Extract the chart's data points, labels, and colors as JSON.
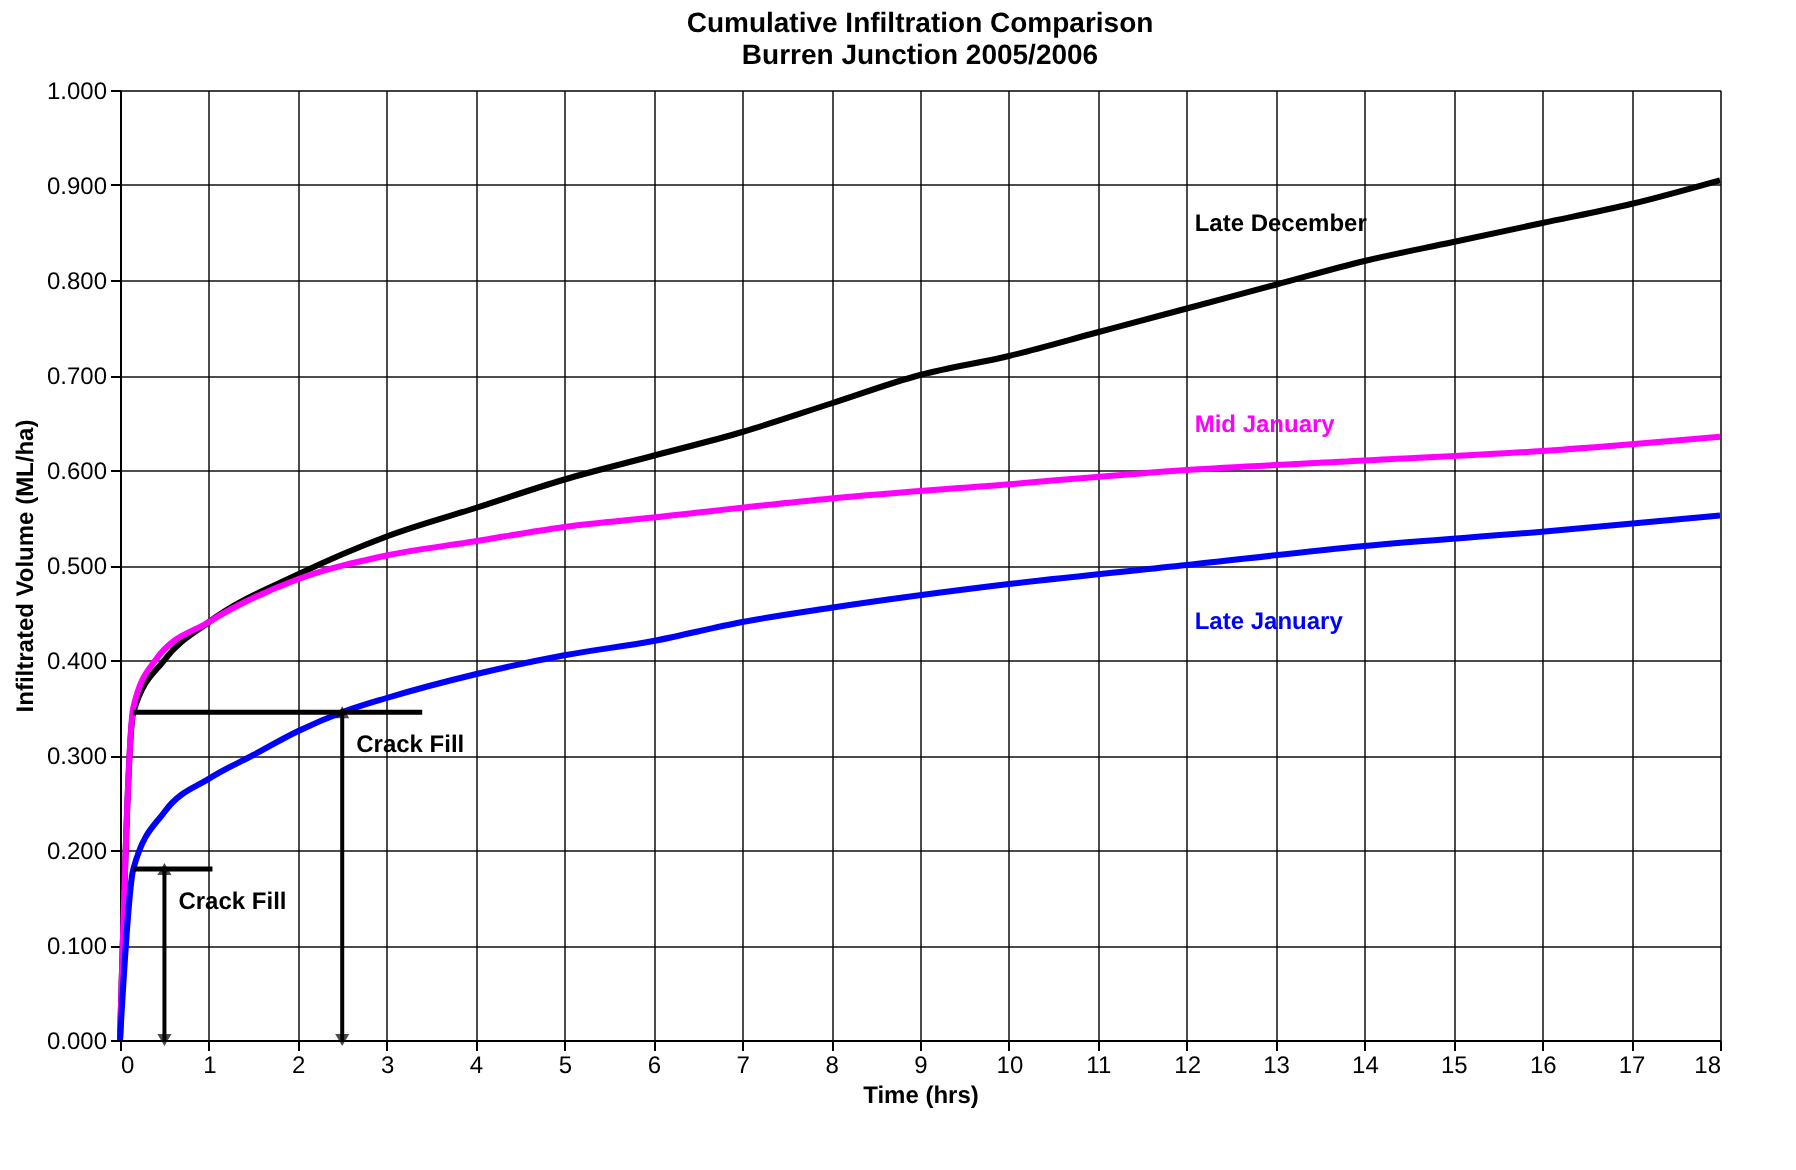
{
  "chart_data": {
    "type": "line",
    "title": [
      "Cumulative Infiltration Comparison",
      "Burren Junction 2005/2006"
    ],
    "xlabel": "Time (hrs)",
    "ylabel": "Infiltrated Volume (ML/ha)",
    "xlim": [
      0,
      18
    ],
    "xticks": [
      0,
      1,
      2,
      3,
      4,
      5,
      6,
      7,
      8,
      9,
      10,
      11,
      12,
      13,
      14,
      15,
      16,
      17,
      18
    ],
    "ylim": [
      0,
      1
    ],
    "yticks": [
      {
        "value": 0,
        "label": "0.000"
      },
      {
        "value": 0.1,
        "label": "0.100"
      },
      {
        "value": 0.2,
        "label": "0.200"
      },
      {
        "value": 0.3,
        "label": "0.300"
      },
      {
        "value": 0.4,
        "label": "0.400"
      },
      {
        "value": 0.5,
        "label": "0.500"
      },
      {
        "value": 0.6,
        "label": "0.600"
      },
      {
        "value": 0.7,
        "label": "0.700"
      },
      {
        "value": 0.8,
        "label": "0.800"
      },
      {
        "value": 0.9,
        "label": "0.900"
      },
      {
        "value": 1,
        "label": "1.000"
      }
    ],
    "grid": true,
    "legend": false,
    "marker": "none",
    "line_style": "solid",
    "series": [
      {
        "name": "Late December",
        "color": "#000000",
        "x": [
          0,
          0.15,
          0.5,
          1,
          2,
          3,
          4,
          5,
          6,
          7,
          8,
          9,
          10,
          11,
          12,
          13,
          14,
          15,
          16,
          17,
          18
        ],
        "values": [
          0,
          0.345,
          0.4,
          0.44,
          0.49,
          0.53,
          0.56,
          0.59,
          0.615,
          0.64,
          0.67,
          0.7,
          0.72,
          0.745,
          0.77,
          0.795,
          0.82,
          0.84,
          0.86,
          0.88,
          0.905
        ]
      },
      {
        "name": "Mid January",
        "color": "#ff00ff",
        "x": [
          0,
          0.15,
          0.4,
          1,
          2,
          3,
          4,
          5,
          6,
          8,
          10,
          12,
          14,
          16,
          18
        ],
        "values": [
          0,
          0.35,
          0.4,
          0.44,
          0.485,
          0.51,
          0.525,
          0.54,
          0.55,
          0.57,
          0.585,
          0.6,
          0.61,
          0.62,
          0.635
        ]
      },
      {
        "name": "Late January",
        "color": "#0000ff",
        "x": [
          0,
          0.15,
          0.5,
          1,
          1.5,
          2,
          2.5,
          3,
          4,
          5,
          6,
          7,
          8,
          10,
          12,
          14,
          16,
          18
        ],
        "values": [
          0,
          0.18,
          0.24,
          0.275,
          0.3,
          0.325,
          0.345,
          0.36,
          0.385,
          0.405,
          0.42,
          0.44,
          0.455,
          0.48,
          0.5,
          0.52,
          0.535,
          0.552
        ]
      }
    ],
    "annotations": [
      {
        "text": "Crack Fill",
        "x": 0.5,
        "y": 0.18
      },
      {
        "text": "Crack Fill",
        "x": 2.5,
        "y": 0.345
      }
    ]
  }
}
